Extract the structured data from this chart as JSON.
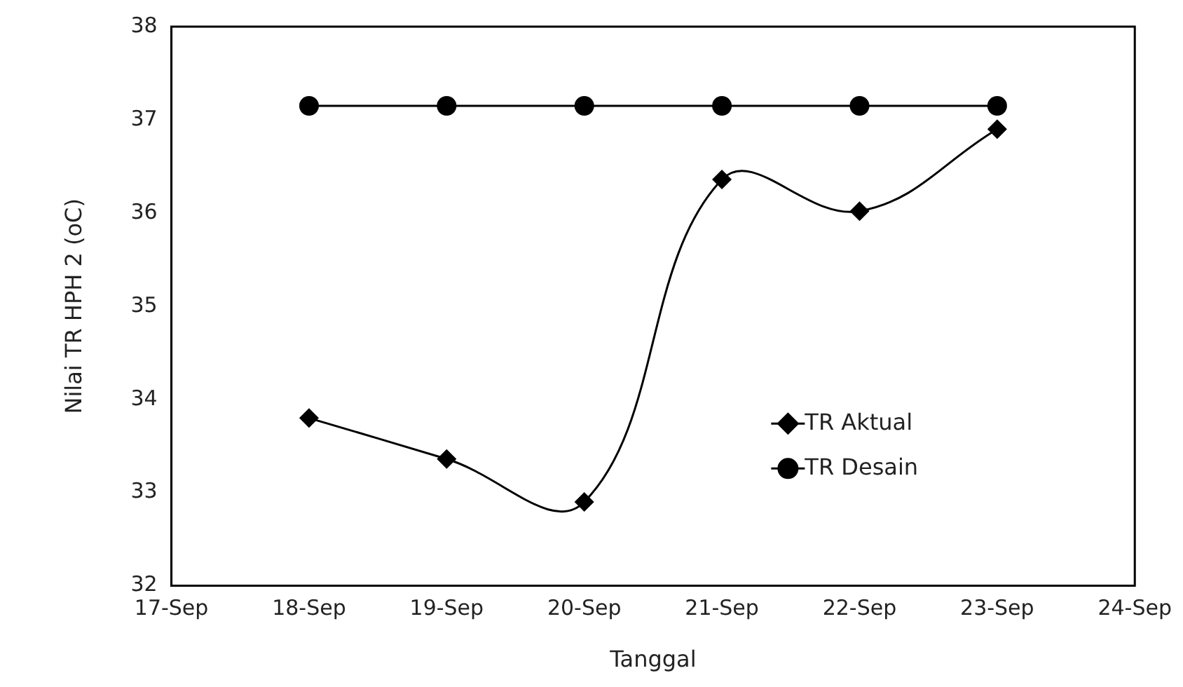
{
  "chart_data": {
    "type": "line",
    "xlabel": "Tanggal",
    "ylabel": "Nilai TR HPH 2 (oC)",
    "x": [
      "--09-18",
      "--09-19",
      "--09-20",
      "--09-21",
      "--09-22",
      "--09-23"
    ],
    "series": [
      {
        "name": "TR Aktual",
        "color": "#000000",
        "marker": "diamond",
        "values": [
          33.8,
          33.36,
          32.9,
          36.36,
          36.02,
          36.9
        ]
      },
      {
        "name": "TR Desain",
        "color": "#000000",
        "marker": "circle",
        "values": [
          37.15,
          37.15,
          37.15,
          37.15,
          37.15,
          37.15
        ]
      }
    ],
    "xlim": [
      "--09-17",
      "--09-24"
    ],
    "xticks": [
      {
        "value": "--09-17",
        "label": "17-Sep"
      },
      {
        "value": "--09-18",
        "label": "18-Sep"
      },
      {
        "value": "--09-19",
        "label": "19-Sep"
      },
      {
        "value": "--09-20",
        "label": "20-Sep"
      },
      {
        "value": "--09-21",
        "label": "21-Sep"
      },
      {
        "value": "--09-22",
        "label": "22-Sep"
      },
      {
        "value": "--09-23",
        "label": "23-Sep"
      },
      {
        "value": "--09-24",
        "label": "24-Sep"
      }
    ],
    "ylim": [
      32,
      38
    ],
    "yticks": [
      32,
      33,
      34,
      35,
      36,
      37,
      38
    ],
    "grid": false,
    "legend": "center right"
  }
}
